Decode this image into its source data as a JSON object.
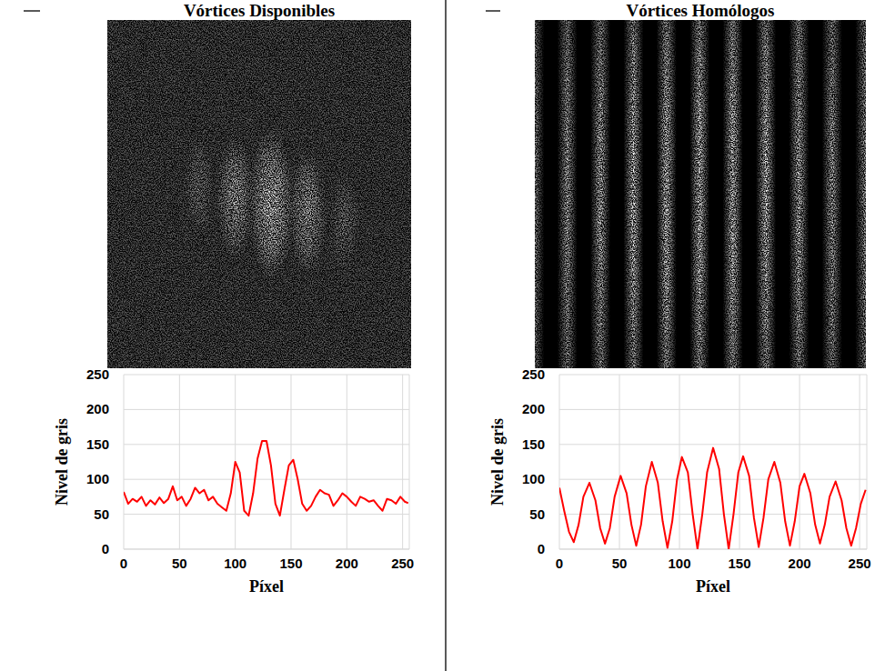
{
  "chart_data": [
    {
      "type": "line",
      "title": "Vórtices Disponibles",
      "x_label": "Píxel",
      "y_label": "Nivel de gris",
      "color": "#ff0000",
      "grid": true,
      "xlim": [
        0,
        256
      ],
      "xticks": [
        0,
        50,
        100,
        150,
        200,
        250
      ],
      "ylim": [
        0,
        250
      ],
      "yticks": [
        0,
        50,
        100,
        150,
        200,
        250
      ],
      "x": [
        0,
        4,
        8,
        12,
        16,
        20,
        24,
        28,
        32,
        36,
        40,
        44,
        48,
        52,
        56,
        60,
        64,
        68,
        72,
        76,
        80,
        84,
        88,
        92,
        96,
        100,
        104,
        108,
        112,
        116,
        120,
        124,
        128,
        132,
        136,
        140,
        144,
        148,
        152,
        156,
        160,
        164,
        168,
        172,
        176,
        180,
        184,
        188,
        192,
        196,
        200,
        204,
        208,
        212,
        216,
        220,
        224,
        228,
        232,
        236,
        240,
        244,
        248,
        252,
        255
      ],
      "values": [
        82,
        65,
        72,
        68,
        75,
        62,
        70,
        64,
        74,
        66,
        72,
        90,
        70,
        75,
        62,
        72,
        88,
        80,
        85,
        70,
        75,
        65,
        60,
        55,
        80,
        125,
        110,
        55,
        48,
        80,
        130,
        155,
        155,
        120,
        65,
        48,
        85,
        120,
        128,
        100,
        65,
        55,
        62,
        75,
        85,
        80,
        78,
        62,
        70,
        80,
        75,
        68,
        62,
        75,
        72,
        68,
        70,
        62,
        55,
        72,
        70,
        65,
        75,
        68,
        66
      ]
    },
    {
      "type": "line",
      "title": "Vórtices Homólogos",
      "x_label": "Píxel",
      "y_label": "Nivel de gris",
      "color": "#ff0000",
      "grid": true,
      "xlim": [
        0,
        256
      ],
      "xticks": [
        0,
        50,
        100,
        150,
        200,
        250
      ],
      "ylim": [
        0,
        250
      ],
      "yticks": [
        0,
        50,
        100,
        150,
        200,
        250
      ],
      "x": [
        0,
        4,
        8,
        12,
        16,
        20,
        25,
        30,
        34,
        38,
        42,
        46,
        51,
        56,
        60,
        64,
        68,
        72,
        77,
        82,
        86,
        90,
        94,
        98,
        102,
        107,
        111,
        115,
        119,
        123,
        128,
        133,
        137,
        141,
        145,
        149,
        153,
        158,
        162,
        166,
        170,
        174,
        179,
        184,
        188,
        192,
        196,
        200,
        204,
        209,
        213,
        217,
        221,
        225,
        230,
        235,
        239,
        243,
        247,
        251,
        255
      ],
      "values": [
        88,
        55,
        25,
        10,
        35,
        75,
        95,
        70,
        30,
        8,
        30,
        75,
        105,
        80,
        35,
        5,
        35,
        90,
        125,
        95,
        40,
        2,
        40,
        100,
        132,
        110,
        50,
        0,
        50,
        110,
        145,
        115,
        50,
        0,
        50,
        110,
        133,
        105,
        45,
        3,
        45,
        100,
        125,
        95,
        40,
        5,
        40,
        90,
        108,
        80,
        35,
        8,
        35,
        75,
        97,
        70,
        30,
        5,
        30,
        65,
        85
      ]
    }
  ]
}
